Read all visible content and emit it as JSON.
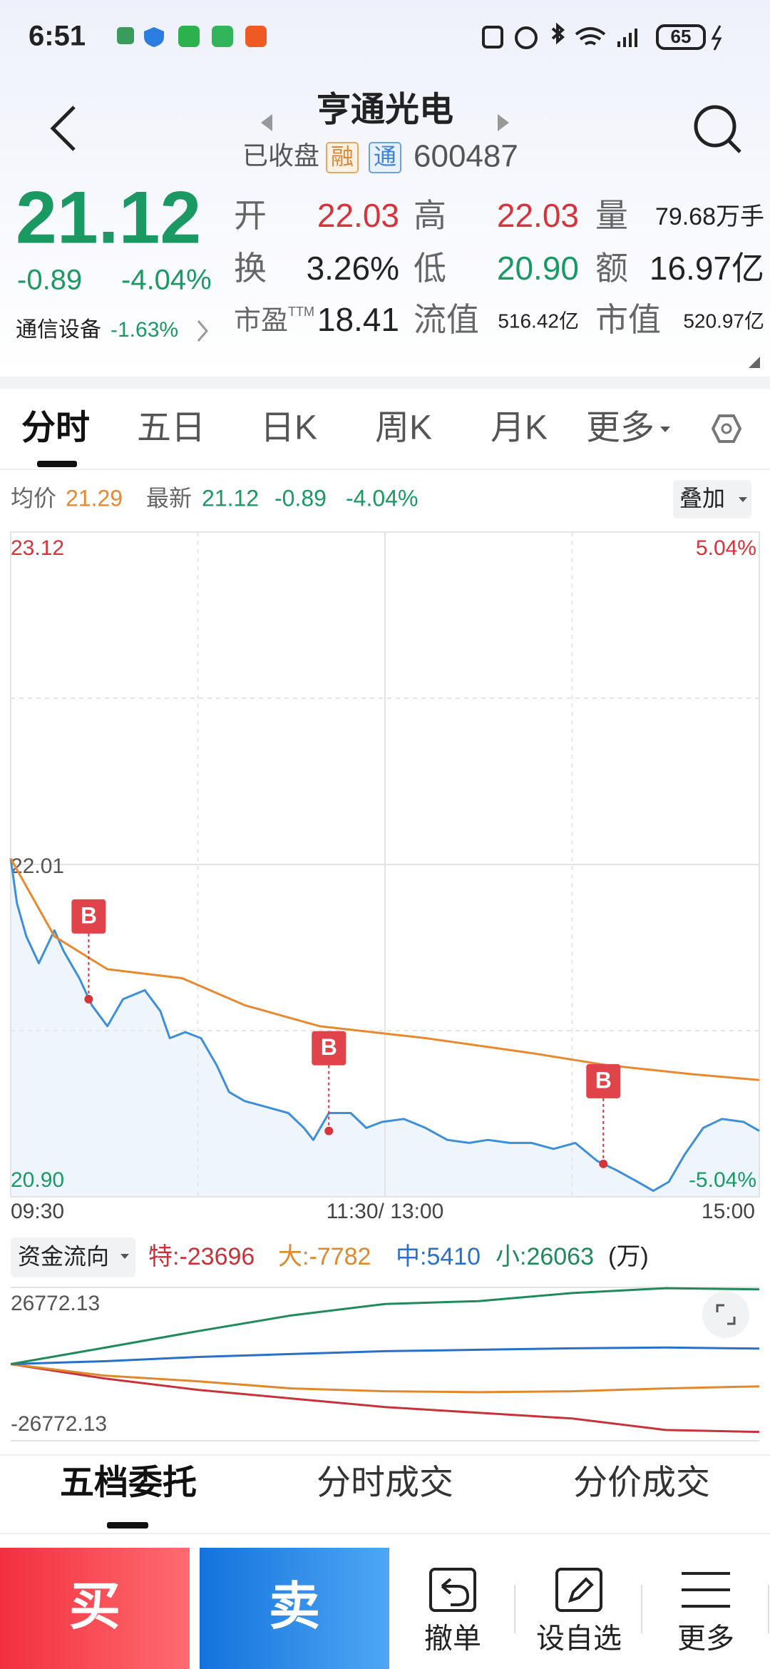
{
  "status_bar": {
    "time": "6:51",
    "battery": "65"
  },
  "header": {
    "title": "亨通光电",
    "status": "已收盘",
    "tag_rong": "融",
    "tag_tong": "通",
    "code": "600487"
  },
  "quote": {
    "price": "21.12",
    "change": "-0.89",
    "change_pct": "-4.04%",
    "sector": "通信设备",
    "sector_change": "-1.63%",
    "fields": [
      {
        "label": "开",
        "value": "22.03"
      },
      {
        "label": "高",
        "value": "22.03"
      },
      {
        "label": "量",
        "value": "79.68万手"
      },
      {
        "label": "换",
        "value": "3.26%"
      },
      {
        "label": "低",
        "value": "20.90"
      },
      {
        "label": "额",
        "value": "16.97亿"
      },
      {
        "label": "市盈",
        "sup": "TTM",
        "value": "18.41"
      },
      {
        "label": "流值",
        "value": "516.42亿"
      },
      {
        "label": "市值",
        "value": "520.97亿"
      }
    ]
  },
  "tabs": [
    "分时",
    "五日",
    "日K",
    "周K",
    "月K",
    "更多"
  ],
  "info": {
    "avg_label": "均价",
    "avg": "21.29",
    "latest_label": "最新",
    "latest": "21.12",
    "change": "-0.89",
    "change_pct": "-4.04%",
    "overlay": "叠加"
  },
  "chart_data": [
    {
      "type": "line",
      "xlim": [
        0,
        240
      ],
      "xticks": [
        {
          "value": 0,
          "label": "09:30"
        },
        {
          "value": 120,
          "label": "11:30/ 13:00"
        },
        {
          "value": 240,
          "label": "15:00"
        }
      ],
      "ylim": [
        20.9,
        23.12
      ],
      "yticks": [
        23.12,
        22.01,
        {
          "value": 20.9,
          "label": "20.90"
        }
      ],
      "y2lim": [
        -5.04,
        5.04
      ],
      "y2ticks": [
        {
          "value": 5.04,
          "label": "5.04%"
        },
        {
          "value": -5.04,
          "label": "-5.04%"
        }
      ],
      "grid_y": [
        22.565,
        21.455
      ],
      "grid_x": [
        60,
        180
      ],
      "series": [
        {
          "name": "最新",
          "color": "#3d8fd8",
          "x": [
            0,
            2,
            5,
            9,
            14,
            17,
            22,
            26,
            31,
            36,
            43,
            48,
            51,
            56,
            61,
            66,
            70,
            75,
            82,
            89,
            94,
            97,
            102,
            109,
            114,
            119,
            126,
            133,
            140,
            147,
            153,
            160,
            167,
            174,
            181,
            188,
            194,
            201,
            206,
            211,
            216,
            222,
            228,
            235,
            240
          ],
          "values": [
            22.03,
            21.88,
            21.77,
            21.68,
            21.79,
            21.72,
            21.63,
            21.54,
            21.47,
            21.56,
            21.59,
            21.52,
            21.43,
            21.45,
            21.43,
            21.34,
            21.25,
            21.22,
            21.2,
            21.18,
            21.13,
            21.09,
            21.18,
            21.18,
            21.13,
            21.15,
            21.16,
            21.13,
            21.09,
            21.08,
            21.09,
            21.08,
            21.08,
            21.06,
            21.08,
            21.02,
            20.99,
            20.95,
            20.92,
            20.95,
            21.04,
            21.13,
            21.16,
            21.15,
            21.12
          ]
        },
        {
          "name": "均价",
          "color": "#e8892f",
          "x": [
            0,
            14,
            31,
            55,
            75,
            99,
            133,
            167,
            191,
            218,
            240
          ],
          "values": [
            22.03,
            21.77,
            21.66,
            21.63,
            21.54,
            21.47,
            21.43,
            21.38,
            21.34,
            21.31,
            21.29
          ]
        }
      ],
      "markers": [
        {
          "label": "B",
          "x": 25,
          "y": 21.56
        },
        {
          "label": "B",
          "x": 102,
          "y": 21.12
        },
        {
          "label": "B",
          "x": 190,
          "y": 21.01
        }
      ]
    },
    {
      "type": "line",
      "title": "资金流向",
      "unit": "(万)",
      "xlim": [
        0,
        240
      ],
      "x": [
        0,
        30,
        60,
        90,
        120,
        150,
        180,
        210,
        240
      ],
      "ylim": [
        -26772.13,
        26772.13
      ],
      "yticks": [
        26772.13,
        -26772.13
      ],
      "series": [
        {
          "name": "特:-23696",
          "color": "#c8323a",
          "values": [
            0,
            -5000,
            -9000,
            -12000,
            -15000,
            -17000,
            -19000,
            -23000,
            -23696
          ]
        },
        {
          "name": "大:-7782",
          "color": "#e0882c",
          "values": [
            0,
            -4000,
            -6000,
            -8500,
            -9500,
            -9800,
            -9500,
            -8500,
            -7782
          ]
        },
        {
          "name": "中:5410",
          "color": "#2a6fc9",
          "values": [
            0,
            1000,
            2500,
            3500,
            4500,
            5000,
            5500,
            5800,
            5410
          ]
        },
        {
          "name": "小:26063",
          "color": "#1f8a5a",
          "values": [
            0,
            5700,
            11500,
            17000,
            21000,
            22000,
            24800,
            26500,
            26063
          ]
        }
      ]
    }
  ],
  "bottom_tabs": [
    "五档委托",
    "分时成交",
    "分价成交"
  ],
  "actions": {
    "buy": "买",
    "sell": "卖",
    "items": [
      "撤单",
      "设自选",
      "更多"
    ]
  }
}
